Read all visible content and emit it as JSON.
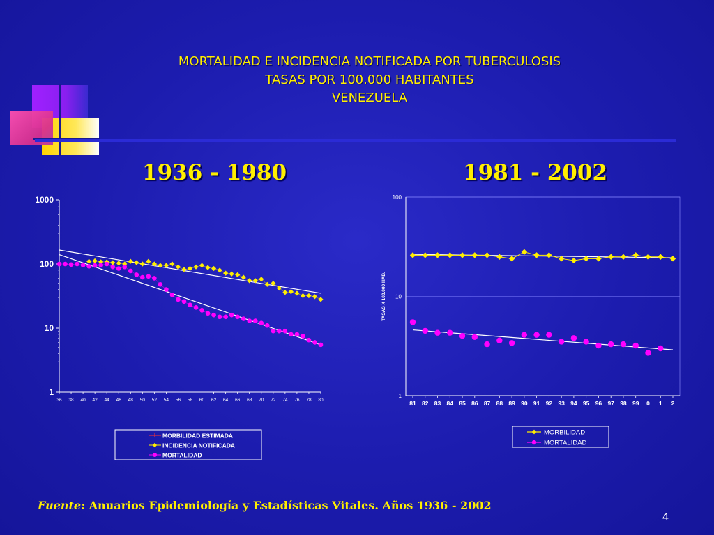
{
  "slide": {
    "title_lines": [
      "MORTALIDAD  E INCIDENCIA NOTIFICADA POR TUBERCULOSIS",
      "TASAS POR 100.000 HABITANTES",
      "VENEZUELA"
    ],
    "footer_label": "Fuente:",
    "footer_text": "Anuarios Epidemiología y Estadísticas Vitales. Años 1936 - 2002",
    "page_number": "4"
  },
  "chart_data": [
    {
      "type": "scatter",
      "title": "1936 - 1980",
      "scale": "log",
      "ylim": [
        1,
        1000
      ],
      "yticks": [
        "1",
        "10",
        "100",
        "1000"
      ],
      "xticks": [
        "36",
        "38",
        "40",
        "42",
        "44",
        "46",
        "48",
        "50",
        "52",
        "54",
        "56",
        "58",
        "60",
        "62",
        "64",
        "66",
        "68",
        "70",
        "72",
        "74",
        "76",
        "78",
        "80"
      ],
      "grid": false,
      "legend_position": "bottom",
      "colors": {
        "morbilidad": "#ff3030",
        "incidencia": "#ffee00",
        "mortalidad": "#ff00ff"
      },
      "series": [
        {
          "name": "MORBILIDAD ESTIMADA",
          "x": [],
          "values": []
        },
        {
          "name": "INCIDENCIA NOTIFICADA",
          "x": [
            41,
            42,
            43,
            44,
            45,
            46,
            47,
            48,
            49,
            50,
            51,
            52,
            53,
            54,
            55,
            56,
            57,
            58,
            59,
            60,
            61,
            62,
            63,
            64,
            65,
            66,
            67,
            68,
            69,
            70,
            71,
            72,
            73,
            74,
            75,
            76,
            77,
            78,
            79,
            80
          ],
          "values": [
            110,
            112,
            108,
            108,
            105,
            103,
            100,
            110,
            105,
            100,
            110,
            100,
            95,
            95,
            100,
            90,
            82,
            85,
            90,
            95,
            88,
            85,
            80,
            72,
            70,
            68,
            62,
            55,
            55,
            58,
            48,
            50,
            42,
            36,
            37,
            35,
            32,
            32,
            31,
            28
          ]
        },
        {
          "name": "MORTALIDAD",
          "x": [
            36,
            37,
            38,
            39,
            40,
            41,
            42,
            43,
            44,
            45,
            46,
            47,
            48,
            49,
            50,
            51,
            52,
            53,
            54,
            55,
            56,
            57,
            58,
            59,
            60,
            61,
            62,
            63,
            64,
            65,
            66,
            67,
            68,
            69,
            70,
            71,
            72,
            73,
            74,
            75,
            76,
            77,
            78,
            79,
            80
          ],
          "values": [
            100,
            100,
            98,
            100,
            96,
            92,
            95,
            96,
            100,
            90,
            85,
            90,
            78,
            68,
            62,
            64,
            60,
            48,
            40,
            33,
            28,
            26,
            23,
            21,
            19,
            17,
            16,
            15,
            15,
            16,
            15,
            14,
            13,
            13,
            12,
            11,
            9,
            9,
            9,
            8,
            8,
            7.5,
            6.5,
            6,
            5.5
          ]
        }
      ],
      "trendlines": [
        {
          "series": "INCIDENCIA NOTIFICADA",
          "from": [
            36,
            165
          ],
          "to": [
            80,
            35
          ]
        },
        {
          "series": "MORTALIDAD",
          "from": [
            36,
            140
          ],
          "to": [
            80,
            5.5
          ]
        }
      ]
    },
    {
      "type": "scatter",
      "title": "1981 - 2002",
      "ylabel": "TASAS X 100.000 HAB.",
      "scale": "log",
      "ylim": [
        1,
        100
      ],
      "yticks": [
        "1",
        "10",
        "100"
      ],
      "xticks": [
        "81",
        "82",
        "83",
        "84",
        "85",
        "86",
        "87",
        "88",
        "89",
        "90",
        "91",
        "92",
        "93",
        "94",
        "95",
        "96",
        "97",
        "98",
        "99",
        "0",
        "1",
        "2"
      ],
      "grid": true,
      "legend_position": "bottom",
      "colors": {
        "morbilidad": "#ffee00",
        "mortalidad": "#ff00ff"
      },
      "series": [
        {
          "name": "MORBILIDAD",
          "values": [
            26,
            26,
            26,
            26,
            26,
            26,
            26,
            25,
            24,
            28,
            26,
            26,
            24,
            23,
            24,
            24,
            25,
            25,
            26,
            25,
            25,
            24
          ]
        },
        {
          "name": "MORTALIDAD",
          "values": [
            5.5,
            4.5,
            4.3,
            4.3,
            4.0,
            3.9,
            3.3,
            3.6,
            3.4,
            4.1,
            4.1,
            4.1,
            3.5,
            3.8,
            3.5,
            3.2,
            3.3,
            3.3,
            3.2,
            2.7,
            3.0,
            null
          ]
        }
      ],
      "trendlines": [
        {
          "series": "MORBILIDAD",
          "from": [
            0,
            26.5
          ],
          "to": [
            21,
            24.5
          ]
        },
        {
          "series": "MORTALIDAD",
          "from": [
            0,
            4.6
          ],
          "to": [
            21,
            2.9
          ]
        }
      ]
    }
  ]
}
